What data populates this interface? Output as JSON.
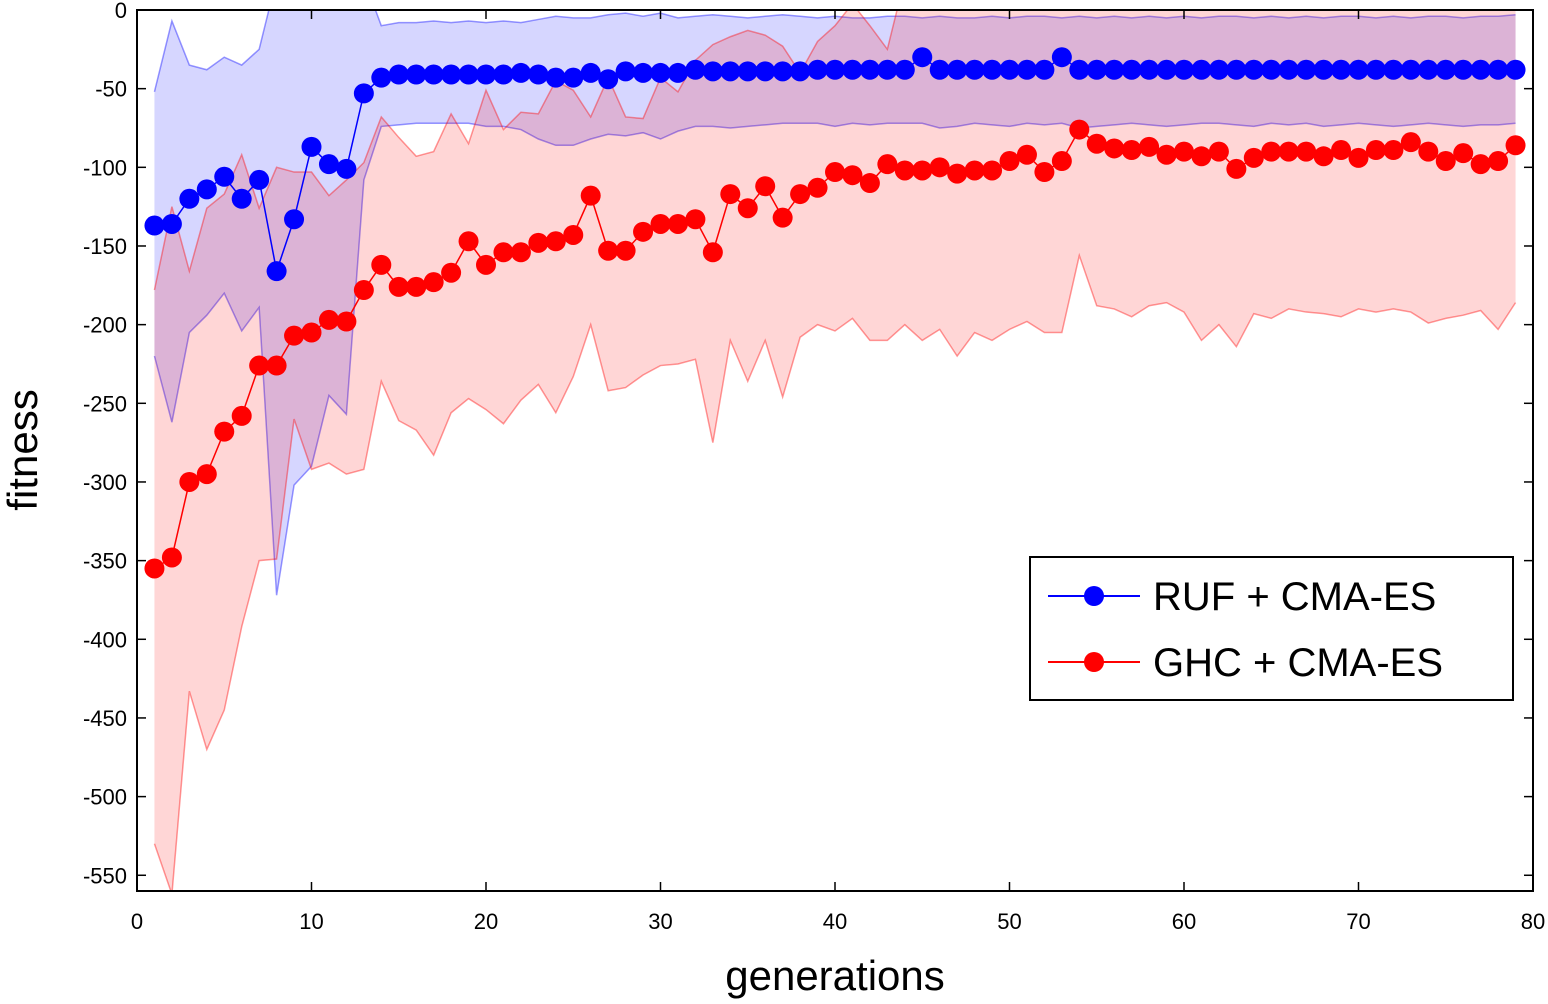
{
  "chart_data": {
    "type": "line",
    "title": "",
    "xlabel": "generations",
    "ylabel": "fitness",
    "xlim": [
      0,
      80
    ],
    "ylim": [
      -560,
      0
    ],
    "xticks": [
      0,
      10,
      20,
      30,
      40,
      50,
      60,
      70,
      80
    ],
    "yticks": [
      0,
      -50,
      -100,
      -150,
      -200,
      -250,
      -300,
      -350,
      -400,
      -450,
      -500,
      -550
    ],
    "grid": false,
    "legend_position": "center-right",
    "x": [
      1,
      2,
      3,
      4,
      5,
      6,
      7,
      8,
      9,
      10,
      11,
      12,
      13,
      14,
      15,
      16,
      17,
      18,
      19,
      20,
      21,
      22,
      23,
      24,
      25,
      26,
      27,
      28,
      29,
      30,
      31,
      32,
      33,
      34,
      35,
      36,
      37,
      38,
      39,
      40,
      41,
      42,
      43,
      44,
      45,
      46,
      47,
      48,
      49,
      50,
      51,
      52,
      53,
      54,
      55,
      56,
      57,
      58,
      59,
      60,
      61,
      62,
      63,
      64,
      65,
      66,
      67,
      68,
      69,
      70,
      71,
      72,
      73,
      74,
      75,
      76,
      77,
      78,
      79
    ],
    "series": [
      {
        "name": "RUF + CMA-ES",
        "color": "#0000ff",
        "band_color": "#d6d6ff",
        "values": [
          -137,
          -136,
          -120,
          -114,
          -106,
          -120,
          -108,
          -166,
          -133,
          -87,
          -98,
          -101,
          -53,
          -43,
          -41,
          -41,
          -41,
          -41,
          -41,
          -41,
          -41,
          -40,
          -41,
          -43,
          -43,
          -40,
          -44,
          -39,
          -40,
          -40,
          -40,
          -38,
          -39,
          -39,
          -39,
          -39,
          -39,
          -39,
          -38,
          -38,
          -38,
          -38,
          -38,
          -38,
          -30,
          -38,
          -38,
          -38,
          -38,
          -38,
          -38,
          -38,
          -30,
          -38,
          -38,
          -38,
          -38,
          -38,
          -38,
          -38,
          -38,
          -38,
          -38,
          -38,
          -38,
          -38,
          -38,
          -38,
          -38,
          -38,
          -38,
          -38,
          -38,
          -38,
          -38,
          -38,
          -38,
          -38,
          -38
        ],
        "upper": [
          -52,
          -7,
          -35,
          -38,
          -30,
          -35,
          -25,
          20,
          20,
          20,
          20,
          20,
          20,
          -10,
          -8,
          -8,
          -7,
          -8,
          -7,
          -8,
          -7,
          -8,
          -6,
          -4,
          -5,
          -5,
          -3,
          -2,
          -4,
          -2,
          -5,
          -4,
          -3,
          -4,
          -5,
          -4,
          -3,
          -4,
          -5,
          -4,
          -5,
          -5,
          -4,
          -4,
          -5,
          -4,
          -5,
          -5,
          -4,
          -5,
          -4,
          -4,
          -5,
          -4,
          -5,
          -4,
          -5,
          -4,
          -5,
          -4,
          -5,
          -4,
          -4,
          -5,
          -4,
          -5,
          -4,
          -5,
          -4,
          -4,
          -5,
          -4,
          -5,
          -4,
          -4,
          -5,
          -4,
          -4,
          -3
        ],
        "lower": [
          -220,
          -262,
          -205,
          -194,
          -180,
          -204,
          -189,
          -372,
          -302,
          -290,
          -245,
          -257,
          -108,
          -74,
          -73,
          -72,
          -72,
          -72,
          -72,
          -74,
          -74,
          -76,
          -82,
          -86,
          -86,
          -82,
          -79,
          -80,
          -78,
          -82,
          -77,
          -74,
          -74,
          -75,
          -74,
          -73,
          -72,
          -72,
          -72,
          -74,
          -72,
          -73,
          -72,
          -72,
          -72,
          -75,
          -74,
          -72,
          -73,
          -74,
          -72,
          -73,
          -72,
          -75,
          -74,
          -73,
          -72,
          -73,
          -74,
          -73,
          -72,
          -72,
          -73,
          -74,
          -72,
          -73,
          -72,
          -74,
          -73,
          -72,
          -73,
          -74,
          -73,
          -72,
          -73,
          -74,
          -73,
          -73,
          -72
        ]
      },
      {
        "name": "GHC + CMA-ES",
        "color": "#ff0000",
        "band_color": "#ffd6d6",
        "values": [
          -355,
          -348,
          -300,
          -295,
          -268,
          -258,
          -226,
          -226,
          -207,
          -205,
          -197,
          -198,
          -178,
          -162,
          -176,
          -176,
          -173,
          -167,
          -147,
          -162,
          -154,
          -154,
          -148,
          -147,
          -143,
          -118,
          -153,
          -153,
          -141,
          -136,
          -136,
          -133,
          -154,
          -117,
          -126,
          -112,
          -132,
          -117,
          -113,
          -103,
          -105,
          -110,
          -98,
          -102,
          -102,
          -100,
          -104,
          -102,
          -102,
          -96,
          -92,
          -103,
          -96,
          -76,
          -85,
          -88,
          -89,
          -87,
          -92,
          -90,
          -93,
          -90,
          -101,
          -94,
          -90,
          -90,
          -90,
          -93,
          -89,
          -94,
          -89,
          -89,
          -84,
          -90,
          -96,
          -91,
          -98,
          -96,
          -86
        ],
        "upper": [
          -178,
          -125,
          -166,
          -126,
          -117,
          -92,
          -126,
          -100,
          -103,
          -103,
          -118,
          -108,
          -97,
          -68,
          -81,
          -93,
          -90,
          -66,
          -85,
          -51,
          -76,
          -65,
          -66,
          -45,
          -51,
          -68,
          -43,
          -68,
          -69,
          -43,
          -52,
          -32,
          -22,
          -17,
          -13,
          -16,
          -23,
          -40,
          -20,
          -10,
          4,
          -10,
          -25,
          20,
          20,
          20,
          20,
          20,
          20,
          20,
          20,
          20,
          20,
          20,
          20,
          20,
          20,
          20,
          20,
          20,
          20,
          20,
          20,
          20,
          20,
          20,
          20,
          20,
          20,
          20,
          20,
          20,
          20,
          20,
          20,
          20,
          20,
          20,
          20
        ],
        "lower": [
          -530,
          -562,
          -433,
          -470,
          -445,
          -392,
          -350,
          -349,
          -260,
          -292,
          -288,
          -295,
          -292,
          -236,
          -261,
          -267,
          -283,
          -256,
          -247,
          -254,
          -263,
          -248,
          -238,
          -256,
          -233,
          -200,
          -242,
          -240,
          -232,
          -226,
          -225,
          -222,
          -275,
          -210,
          -236,
          -210,
          -246,
          -208,
          -200,
          -204,
          -196,
          -210,
          -210,
          -200,
          -210,
          -203,
          -220,
          -205,
          -210,
          -203,
          -198,
          -205,
          -205,
          -156,
          -188,
          -190,
          -195,
          -188,
          -186,
          -192,
          -210,
          -200,
          -214,
          -193,
          -196,
          -190,
          -192,
          -193,
          -195,
          -190,
          -192,
          -190,
          -192,
          -199,
          -196,
          -194,
          -191,
          -203,
          -186
        ]
      }
    ]
  }
}
